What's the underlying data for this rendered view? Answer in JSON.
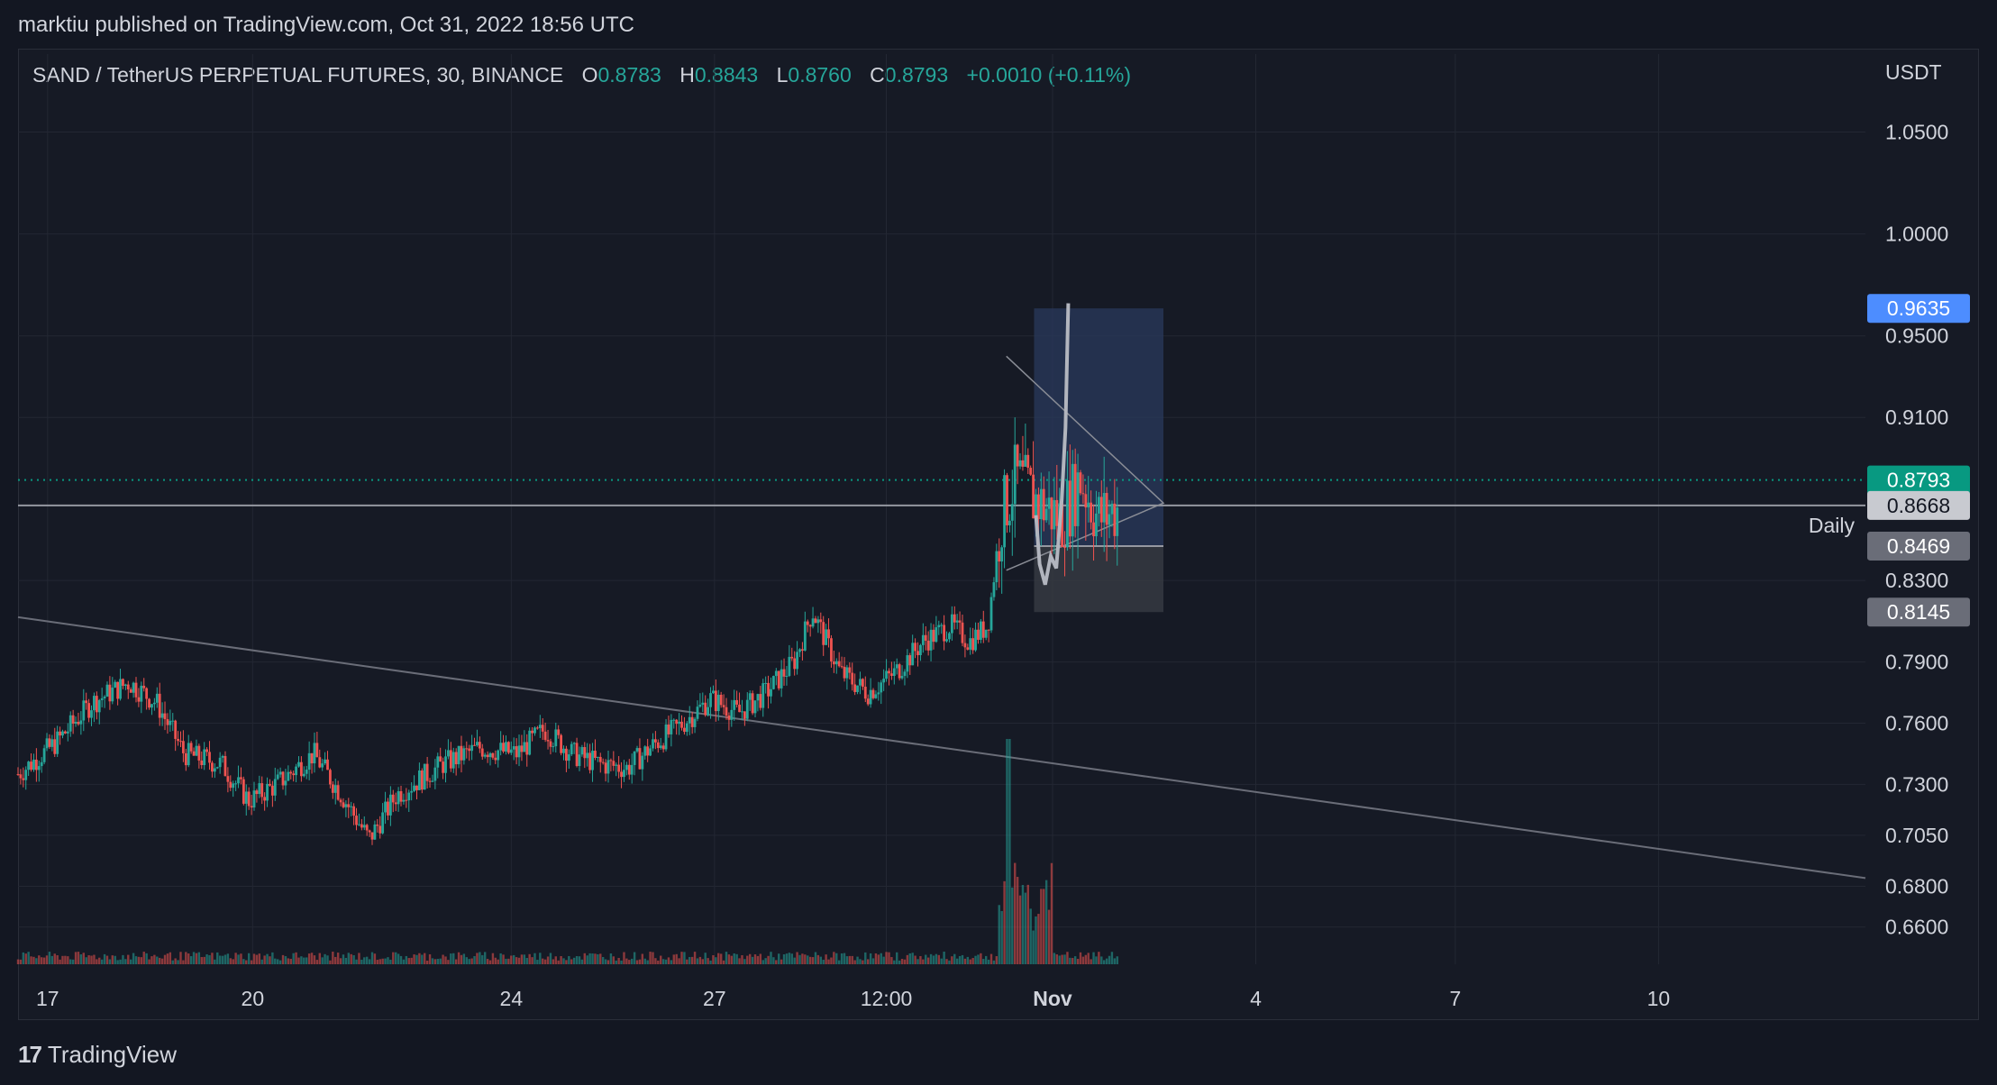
{
  "header": {
    "published": "marktiu published on TradingView.com, Oct 31, 2022 18:56 UTC"
  },
  "legend": {
    "symbol": "SAND / TetherUS PERPETUAL FUTURES, 30, BINANCE",
    "o_label": "O",
    "o": "0.8783",
    "h_label": "H",
    "h": "0.8843",
    "l_label": "L",
    "l": "0.8760",
    "c_label": "C",
    "c": "0.8793",
    "change": "+0.0010 (+0.11%)"
  },
  "footer": {
    "brand": "TradingView",
    "logo": "tradingview-logo"
  },
  "colors": {
    "up": "#26a69a",
    "down": "#ef5350",
    "bg": "#161a25",
    "grid": "#232733",
    "text": "#d1d4dc",
    "position_target": "#2a3a5c",
    "position_stop": "#3a3d45",
    "last_price": "#089981",
    "label_blue": "#2962ff"
  },
  "chart_data": {
    "type": "candlestick",
    "unit_label": "USDT",
    "ylim": [
      0.655,
      1.075
    ],
    "y_ticks": [
      "1.0500",
      "1.0000",
      "0.9500",
      "0.9100",
      "0.8300",
      "0.7900",
      "0.7600",
      "0.7300",
      "0.7050",
      "0.6800",
      "0.6600"
    ],
    "x_ticks": [
      "17",
      "20",
      "24",
      "27",
      "12:00",
      "Nov",
      "4",
      "7",
      "10"
    ],
    "price_labels": [
      {
        "text": "0.9635",
        "value": 0.9635,
        "kind": "target"
      },
      {
        "text": "0.8793",
        "value": 0.8793,
        "kind": "last"
      },
      {
        "text": "0.8668",
        "value": 0.8668,
        "kind": "level"
      },
      {
        "text": "0.8469",
        "value": 0.8469,
        "kind": "entry"
      },
      {
        "text": "0.8145",
        "value": 0.8145,
        "kind": "stop"
      }
    ],
    "level_line": {
      "value": 0.8668,
      "label": "Daily"
    },
    "trend_line": {
      "from": [
        0.0,
        0.812
      ],
      "to": [
        1.0,
        0.684
      ]
    },
    "triangle": {
      "top": [
        0.535,
        0.94
      ],
      "bottom": [
        0.535,
        0.835
      ],
      "apex": [
        0.62,
        0.868
      ]
    },
    "position": {
      "entry": 0.8469,
      "target": 0.9635,
      "stop": 0.8145
    },
    "keyframes": [
      [
        0.0,
        0.735
      ],
      [
        0.02,
        0.75
      ],
      [
        0.04,
        0.77
      ],
      [
        0.06,
        0.78
      ],
      [
        0.075,
        0.77
      ],
      [
        0.09,
        0.745
      ],
      [
        0.11,
        0.74
      ],
      [
        0.125,
        0.722
      ],
      [
        0.14,
        0.73
      ],
      [
        0.16,
        0.745
      ],
      [
        0.175,
        0.725
      ],
      [
        0.19,
        0.703
      ],
      [
        0.205,
        0.725
      ],
      [
        0.23,
        0.74
      ],
      [
        0.25,
        0.748
      ],
      [
        0.27,
        0.745
      ],
      [
        0.285,
        0.757
      ],
      [
        0.3,
        0.745
      ],
      [
        0.315,
        0.74
      ],
      [
        0.33,
        0.738
      ],
      [
        0.345,
        0.75
      ],
      [
        0.36,
        0.76
      ],
      [
        0.375,
        0.772
      ],
      [
        0.39,
        0.765
      ],
      [
        0.405,
        0.775
      ],
      [
        0.42,
        0.79
      ],
      [
        0.43,
        0.815
      ],
      [
        0.445,
        0.785
      ],
      [
        0.46,
        0.775
      ],
      [
        0.475,
        0.785
      ],
      [
        0.49,
        0.8
      ],
      [
        0.505,
        0.808
      ],
      [
        0.515,
        0.8
      ],
      [
        0.525,
        0.808
      ],
      [
        0.532,
        0.86
      ],
      [
        0.54,
        0.88
      ],
      [
        0.55,
        0.87
      ],
      [
        0.565,
        0.86
      ],
      [
        0.575,
        0.88
      ],
      [
        0.585,
        0.86
      ],
      [
        0.595,
        0.865
      ]
    ],
    "volume_spike_x": 0.536
  }
}
